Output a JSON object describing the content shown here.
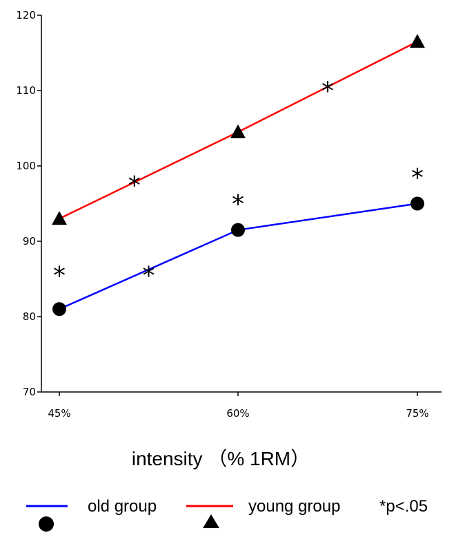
{
  "chart_data": {
    "type": "line",
    "categories": [
      "45%",
      "60%",
      "75%"
    ],
    "xlabel": "intensity （% 1RM）",
    "ylabel": "",
    "ylim": [
      70,
      120
    ],
    "yticks": [
      70,
      80,
      90,
      100,
      110,
      120
    ],
    "grid": false,
    "legend_position": "bottom",
    "series": [
      {
        "name": "old group",
        "values": [
          81,
          91.5,
          95
        ],
        "color": "#0000ff",
        "marker": "circle"
      },
      {
        "name": "young group",
        "values": [
          93,
          104.5,
          116.5
        ],
        "color": "#ff0000",
        "marker": "triangle"
      }
    ],
    "annotations": [
      {
        "text": "*",
        "x": 0,
        "y": 86
      },
      {
        "text": "*",
        "x": 0.5,
        "y": 86
      },
      {
        "text": "*",
        "x": 1,
        "y": 95.5
      },
      {
        "text": "*",
        "x": 2,
        "y": 99
      },
      {
        "text": "*",
        "x": 0.42,
        "y": 98
      },
      {
        "text": "*",
        "x": 1.5,
        "y": 110.5
      }
    ],
    "significance_note": "*p<.05"
  }
}
